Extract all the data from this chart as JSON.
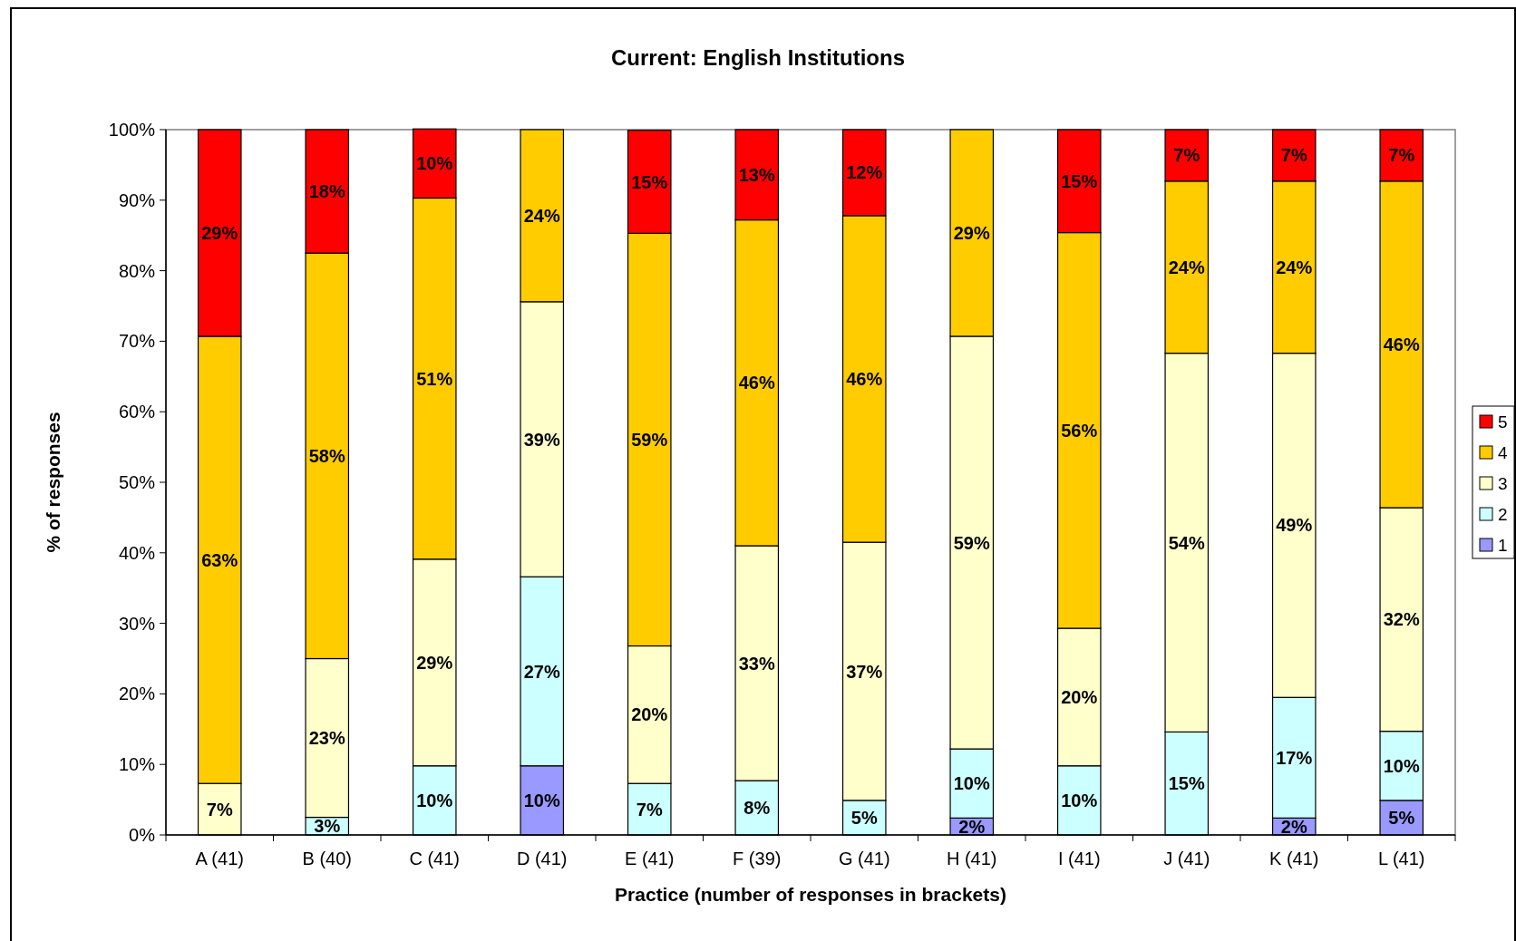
{
  "chart_data": {
    "type": "bar",
    "stacked": true,
    "title": "Current: English Institutions",
    "xlabel": "Practice (number of responses in brackets)",
    "ylabel": "% of responses",
    "categories": [
      "A (41)",
      "B (40)",
      "C (41)",
      "D (41)",
      "E (41)",
      "F (39)",
      "G (41)",
      "H (41)",
      "I (41)",
      "J (41)",
      "K (41)",
      "L (41)"
    ],
    "ylim": [
      0,
      100
    ],
    "yticks": [
      {
        "value": 0,
        "label": "0%"
      },
      {
        "value": 10,
        "label": "10%"
      },
      {
        "value": 20,
        "label": "20%"
      },
      {
        "value": 30,
        "label": "30%"
      },
      {
        "value": 40,
        "label": "40%"
      },
      {
        "value": 50,
        "label": "50%"
      },
      {
        "value": 60,
        "label": "60%"
      },
      {
        "value": 70,
        "label": "70%"
      },
      {
        "value": 80,
        "label": "80%"
      },
      {
        "value": 90,
        "label": "90%"
      },
      {
        "value": 100,
        "label": "100%"
      }
    ],
    "grid": false,
    "legend": "right",
    "series": [
      {
        "name": "1",
        "color": "#9999ff",
        "values": [
          null,
          null,
          null,
          9.8,
          null,
          null,
          null,
          2.4,
          null,
          null,
          2.4,
          4.9
        ],
        "value_labels": [
          null,
          null,
          null,
          "10%",
          null,
          null,
          null,
          "2%",
          null,
          null,
          "2%",
          "5%"
        ]
      },
      {
        "name": "2",
        "color": "#ccffff",
        "values": [
          null,
          2.5,
          9.8,
          26.8,
          7.3,
          7.7,
          4.9,
          9.8,
          9.8,
          14.6,
          17.1,
          9.8
        ],
        "value_labels": [
          null,
          "3%",
          "10%",
          "27%",
          "7%",
          "8%",
          "5%",
          "10%",
          "10%",
          "15%",
          "17%",
          "10%"
        ]
      },
      {
        "name": "3",
        "color": "#ffffcc",
        "values": [
          7.3,
          22.5,
          29.3,
          39.0,
          19.5,
          33.3,
          36.6,
          58.5,
          19.5,
          53.7,
          48.8,
          31.7
        ],
        "value_labels": [
          "7%",
          "23%",
          "29%",
          "39%",
          "20%",
          "33%",
          "37%",
          "59%",
          "20%",
          "54%",
          "49%",
          "32%"
        ]
      },
      {
        "name": "4",
        "color": "#ffcc00",
        "values": [
          63.4,
          57.5,
          51.2,
          24.4,
          58.5,
          46.2,
          46.3,
          29.3,
          56.1,
          24.4,
          24.4,
          46.3
        ],
        "value_labels": [
          "63%",
          "58%",
          "51%",
          "24%",
          "59%",
          "46%",
          "46%",
          "29%",
          "56%",
          "24%",
          "24%",
          "46%"
        ]
      },
      {
        "name": "5",
        "color": "#ff0000",
        "values": [
          29.3,
          17.5,
          9.8,
          null,
          14.6,
          12.8,
          12.2,
          null,
          14.6,
          7.3,
          7.3,
          7.3
        ],
        "value_labels": [
          "29%",
          "18%",
          "10%",
          null,
          "15%",
          "13%",
          "12%",
          null,
          "15%",
          "7%",
          "7%",
          "7%"
        ]
      }
    ]
  }
}
